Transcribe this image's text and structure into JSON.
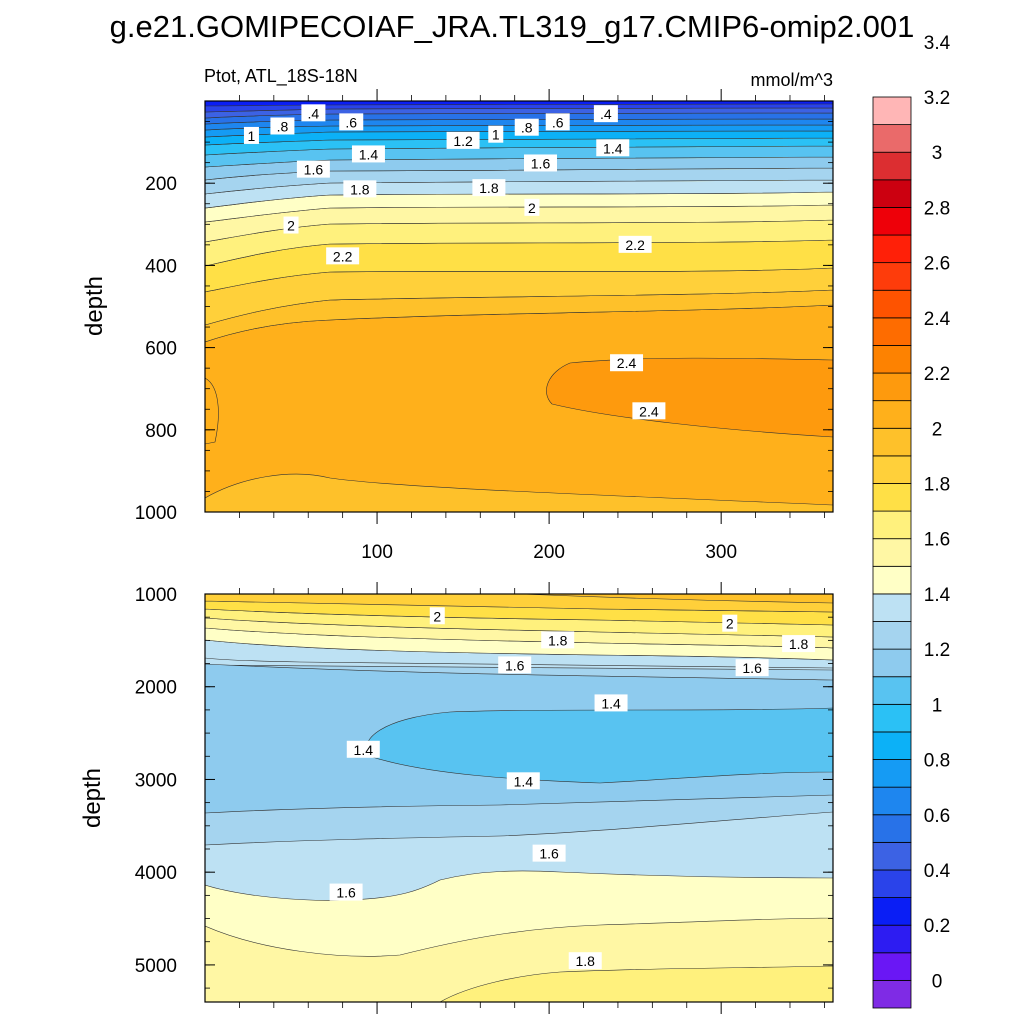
{
  "title": "g.e21.GOMIPECOIAF_JRA.TL319_g17.CMIP6-omip2.001",
  "chart_data": [
    {
      "type": "contour",
      "panel": "upper",
      "left_label": "Ptot, ATL_18S-18N",
      "right_label": "mmol/m^3",
      "ylabel": "depth",
      "xlim": [
        0,
        365
      ],
      "ylim": [
        0,
        1000
      ],
      "y_reversed": true,
      "x_ticks": [
        100,
        200,
        300
      ],
      "x_tick_labels": [
        "100",
        "200",
        "300"
      ],
      "y_ticks": [
        200,
        400,
        600,
        800,
        1000
      ],
      "y_tick_labels": [
        "200",
        "400",
        "600",
        "800",
        "1000"
      ],
      "contour_labels": [
        {
          "text": ".4",
          "x": 63,
          "y": 30
        },
        {
          "text": ".6",
          "x": 85,
          "y": 52
        },
        {
          "text": ".8",
          "x": 45,
          "y": 62
        },
        {
          "text": "1",
          "x": 27,
          "y": 85
        },
        {
          "text": "1.4",
          "x": 95,
          "y": 130
        },
        {
          "text": "1.6",
          "x": 63,
          "y": 167
        },
        {
          "text": "1.8",
          "x": 90,
          "y": 215
        },
        {
          "text": "2",
          "x": 50,
          "y": 303
        },
        {
          "text": "2.2",
          "x": 80,
          "y": 378
        },
        {
          "text": "1.2",
          "x": 150,
          "y": 97
        },
        {
          "text": "1",
          "x": 169,
          "y": 82
        },
        {
          "text": ".8",
          "x": 187,
          "y": 65
        },
        {
          "text": ".6",
          "x": 205,
          "y": 52
        },
        {
          "text": ".4",
          "x": 233,
          "y": 32
        },
        {
          "text": "1.4",
          "x": 237,
          "y": 115
        },
        {
          "text": "1.6",
          "x": 195,
          "y": 152
        },
        {
          "text": "1.8",
          "x": 165,
          "y": 212
        },
        {
          "text": "2",
          "x": 190,
          "y": 260
        },
        {
          "text": "2.2",
          "x": 250,
          "y": 350
        },
        {
          "text": "2.4",
          "x": 245,
          "y": 638
        },
        {
          "text": "2.4",
          "x": 258,
          "y": 755
        }
      ]
    },
    {
      "type": "contour",
      "panel": "lower",
      "ylabel": "depth",
      "xlim": [
        0,
        365
      ],
      "ylim": [
        1000,
        5400
      ],
      "y_reversed": true,
      "x_ticks": [
        100,
        200,
        300
      ],
      "y_ticks": [
        1000,
        2000,
        3000,
        4000,
        5000
      ],
      "y_tick_labels": [
        "1000",
        "2000",
        "3000",
        "4000",
        "5000"
      ],
      "contour_labels": [
        {
          "text": "2",
          "x": 135,
          "y": 1240
        },
        {
          "text": "2",
          "x": 305,
          "y": 1320
        },
        {
          "text": "1.8",
          "x": 205,
          "y": 1500
        },
        {
          "text": "1.8",
          "x": 345,
          "y": 1540
        },
        {
          "text": "1.6",
          "x": 180,
          "y": 1770
        },
        {
          "text": "1.6",
          "x": 318,
          "y": 1800
        },
        {
          "text": "1.4",
          "x": 236,
          "y": 2180
        },
        {
          "text": "1.4",
          "x": 92,
          "y": 2680
        },
        {
          "text": "1.4",
          "x": 185,
          "y": 3020
        },
        {
          "text": "1.6",
          "x": 200,
          "y": 3800
        },
        {
          "text": "1.6",
          "x": 82,
          "y": 4220
        },
        {
          "text": "1.8",
          "x": 221,
          "y": 4960
        }
      ]
    }
  ],
  "colorbar": {
    "labels": [
      "0",
      "0.2",
      "0.4",
      "0.6",
      "0.8",
      "1",
      "1.2",
      "1.4",
      "1.6",
      "1.8",
      "2",
      "2.2",
      "2.4",
      "2.6",
      "2.8",
      "3",
      "3.2",
      "3.4"
    ],
    "colors": [
      "#7f2be5",
      "#6a17f5",
      "#2d1cf2",
      "#0a1ef5",
      "#2a43ea",
      "#3c62e4",
      "#2872e8",
      "#1e86ef",
      "#159bf4",
      "#0cb1f7",
      "#2bc1f5",
      "#58c3f1",
      "#8ecbee",
      "#a5d4ef",
      "#bde1f3",
      "#ffffc6",
      "#fff7a4",
      "#fff17d",
      "#ffe046",
      "#ffd03a",
      "#fec12a",
      "#ffb01b",
      "#fe9a0d",
      "#fd8201",
      "#fe6c00",
      "#fe5300",
      "#fe3c0b",
      "#ff2008",
      "#ee0009",
      "#cc0010",
      "#dc2e31",
      "#ea6a6a",
      "#ffb6b6"
    ]
  }
}
